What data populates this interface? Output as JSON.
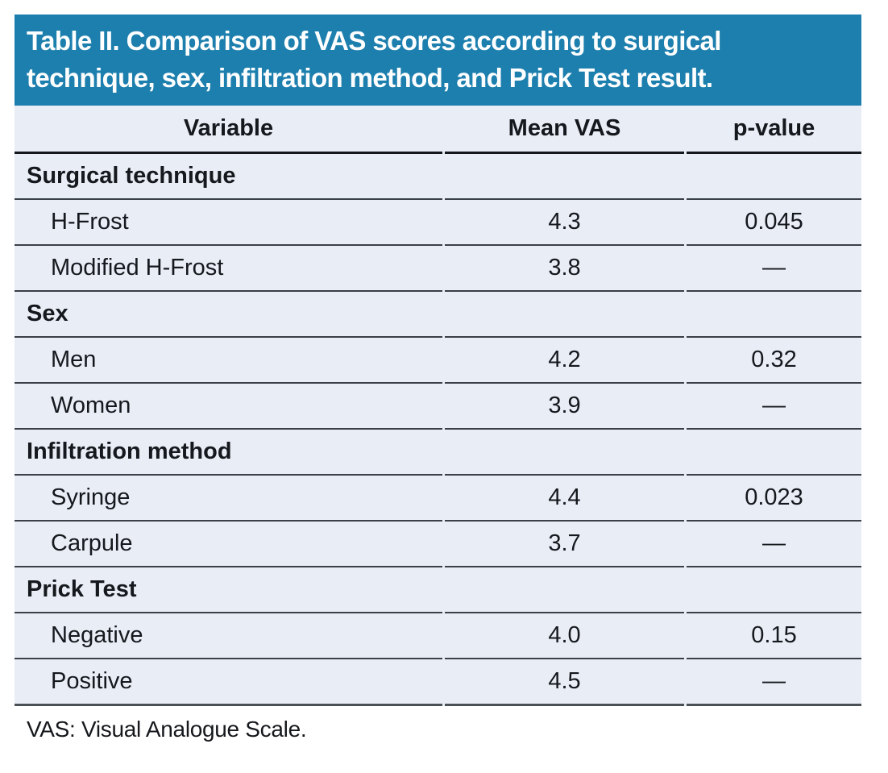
{
  "table": {
    "title": "Table II. Comparison of VAS scores according to surgical technique, sex, infiltration method, and Prick Test result.",
    "columns": [
      "Variable",
      "Mean VAS",
      "p-value"
    ],
    "sections": [
      {
        "name": "Surgical technique",
        "rows": [
          {
            "variable": "H-Frost",
            "mean_vas": "4.3",
            "p_value": "0.045"
          },
          {
            "variable": "Modified H-Frost",
            "mean_vas": "3.8",
            "p_value": "—"
          }
        ]
      },
      {
        "name": "Sex",
        "rows": [
          {
            "variable": "Men",
            "mean_vas": "4.2",
            "p_value": "0.32"
          },
          {
            "variable": "Women",
            "mean_vas": "3.9",
            "p_value": "—"
          }
        ]
      },
      {
        "name": "Infiltration method",
        "rows": [
          {
            "variable": "Syringe",
            "mean_vas": "4.4",
            "p_value": "0.023"
          },
          {
            "variable": "Carpule",
            "mean_vas": "3.7",
            "p_value": "—"
          }
        ]
      },
      {
        "name": "Prick Test",
        "rows": [
          {
            "variable": "Negative",
            "mean_vas": "4.0",
            "p_value": "0.15"
          },
          {
            "variable": "Positive",
            "mean_vas": "4.5",
            "p_value": "—"
          }
        ]
      }
    ],
    "footnote": "VAS: Visual Analogue Scale.",
    "colors": {
      "banner_background": "#1d7fae",
      "banner_text": "#ffffff",
      "row_background": "#e9edf6",
      "row_rule": "#3a4047",
      "header_rule": "#14171c",
      "bottom_rule": "#4b5057",
      "body_text": "#15181c"
    }
  }
}
